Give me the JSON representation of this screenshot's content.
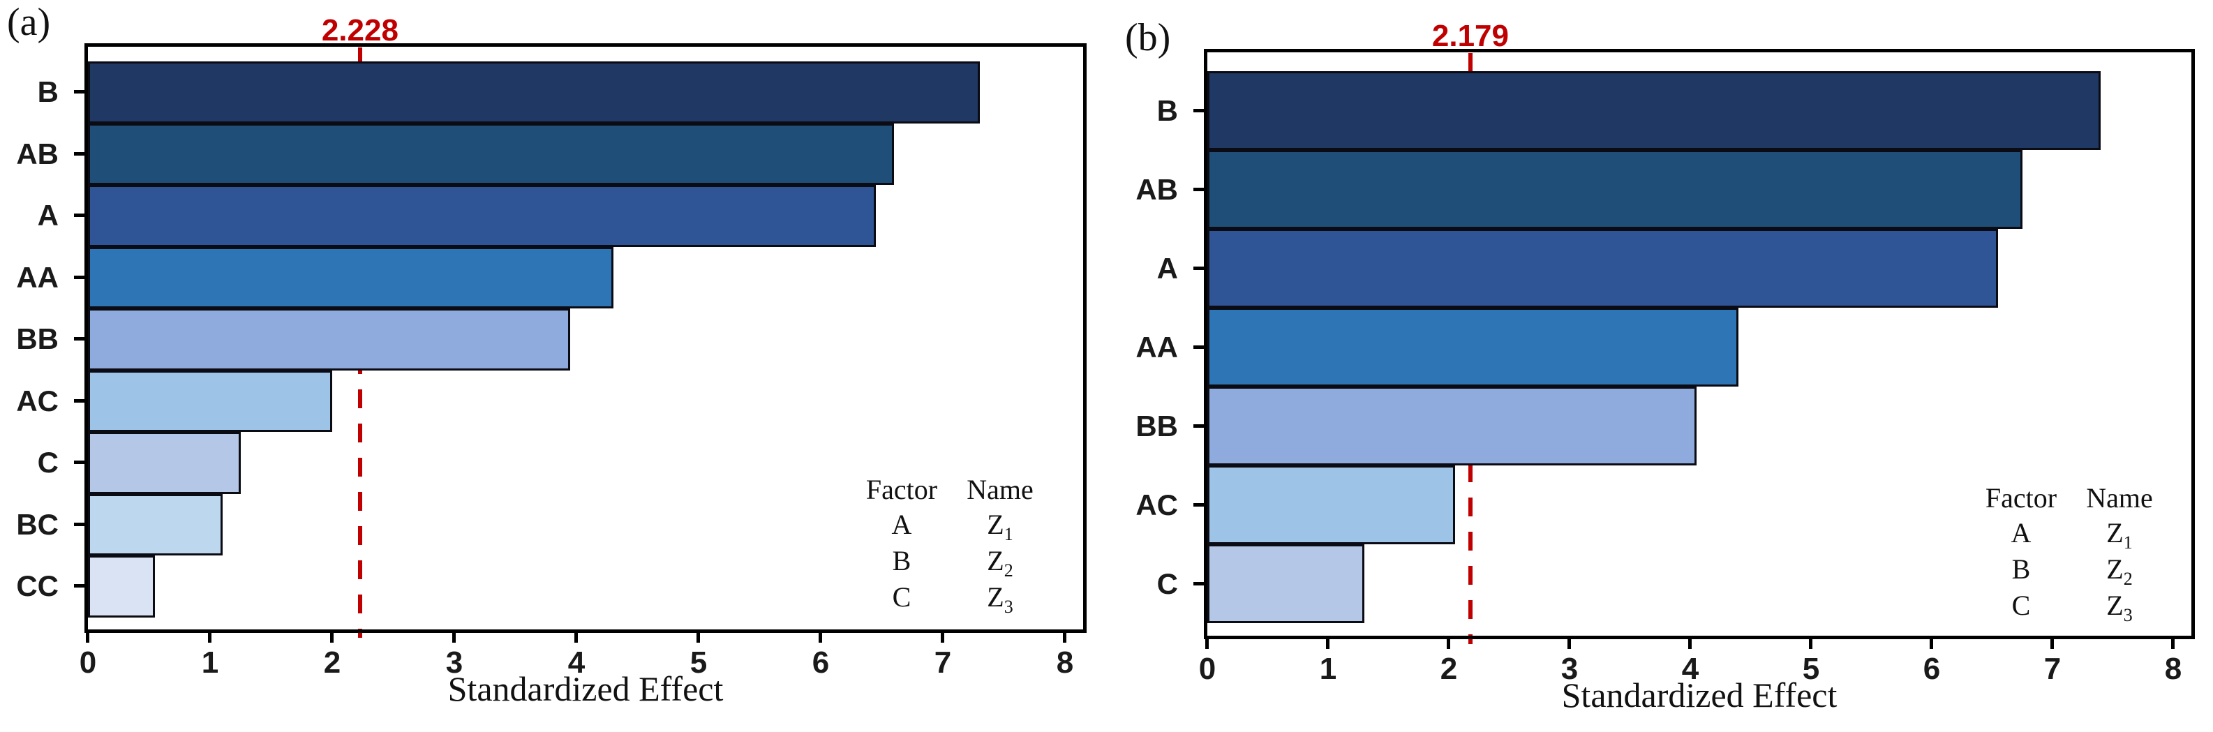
{
  "figure": {
    "colors": {
      "reference_red": "#C00000",
      "bar_border": "#0b0b14",
      "axis_black": "#000000",
      "background": "#ffffff"
    },
    "legend": {
      "headers": [
        "Factor",
        "Name"
      ],
      "rows": [
        {
          "factor": "A",
          "name_base": "Z",
          "name_sub": "1"
        },
        {
          "factor": "B",
          "name_base": "Z",
          "name_sub": "2"
        },
        {
          "factor": "C",
          "name_base": "Z",
          "name_sub": "3"
        }
      ]
    }
  },
  "chart_data": [
    {
      "type": "bar",
      "orientation": "horizontal",
      "panel_label": "(a)",
      "title": "2.228",
      "reference_line": 2.228,
      "categories": [
        "B",
        "AB",
        "A",
        "AA",
        "BB",
        "AC",
        "C",
        "BC",
        "CC"
      ],
      "values": [
        7.3,
        6.6,
        6.45,
        4.3,
        3.95,
        2.0,
        1.25,
        1.1,
        0.55
      ],
      "bar_colors": [
        "#1F3864",
        "#1F4E79",
        "#2F5597",
        "#2E75B6",
        "#8FAADC",
        "#9DC3E6",
        "#B4C7E7",
        "#BDD7EE",
        "#DAE3F3"
      ],
      "xlabel": "Standardized Effect",
      "xlim": [
        0,
        8
      ],
      "xticks": [
        0,
        1,
        2,
        3,
        4,
        5,
        6,
        7,
        8
      ],
      "xtick_labels": [
        "0",
        "1",
        "2",
        "3",
        "4",
        "5",
        "6",
        "7",
        "8"
      ],
      "grid": false,
      "legend_position": "lower-right"
    },
    {
      "type": "bar",
      "orientation": "horizontal",
      "panel_label": "(b)",
      "title": "2.179",
      "reference_line": 2.179,
      "categories": [
        "B",
        "AB",
        "A",
        "AA",
        "BB",
        "AC",
        "C"
      ],
      "values": [
        7.4,
        6.75,
        6.55,
        4.4,
        4.05,
        2.05,
        1.3
      ],
      "bar_colors": [
        "#1F3864",
        "#1F4E79",
        "#2F5597",
        "#2E75B6",
        "#8FAADC",
        "#9DC3E6",
        "#B4C7E7"
      ],
      "xlabel": "Standardized Effect",
      "xlim": [
        0,
        8
      ],
      "xticks": [
        0,
        1,
        2,
        3,
        4,
        5,
        6,
        7,
        8
      ],
      "xtick_labels": [
        "0",
        "1",
        "2",
        "3",
        "4",
        "5",
        "6",
        "7",
        "8"
      ],
      "grid": false,
      "legend_position": "lower-right"
    }
  ]
}
